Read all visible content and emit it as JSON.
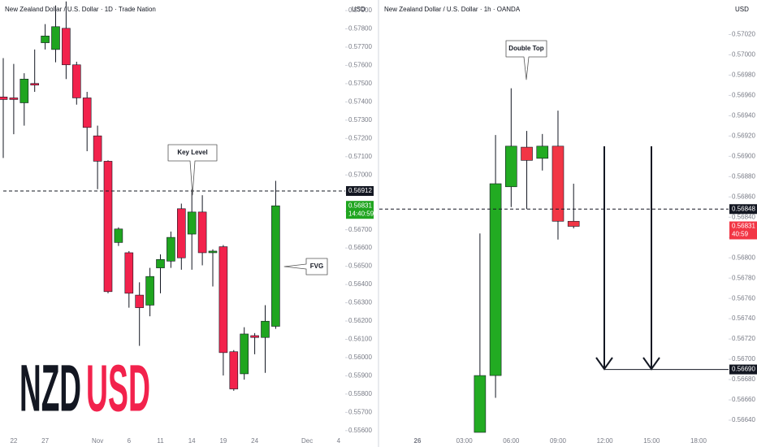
{
  "chart_data": [
    {
      "type": "candlestick",
      "title": "New Zealand Dollar / U.S. Dollar · 1D · Trade Nation",
      "currency": "USD",
      "up_color": "#1fa51f",
      "down_color": "#f2224c",
      "categories": [
        null,
        "22",
        null,
        null,
        "27",
        null,
        null,
        null,
        null,
        "Nov",
        null,
        null,
        "6",
        null,
        null,
        "11",
        null,
        null,
        "14",
        null,
        null,
        "19",
        null,
        null,
        "24",
        null,
        null,
        null,
        null,
        "Dec",
        null,
        null,
        "4"
      ],
      "open": [
        0.57427,
        0.57422,
        0.57395,
        0.57501,
        0.57724,
        0.57687,
        0.57803,
        0.57603,
        0.57422,
        0.57214,
        0.57075,
        0.5663,
        0.56574,
        0.56342,
        0.56287,
        0.56491,
        0.56528,
        0.56815,
        0.56676,
        0.56797,
        0.56574,
        0.56607,
        0.56032,
        0.55911,
        0.5612,
        0.5611,
        0.56171,
        null,
        null,
        null,
        null,
        null,
        null
      ],
      "high": [
        0.5764,
        0.57608,
        0.57557,
        0.57687,
        0.57826,
        0.57928,
        0.5795,
        0.5762,
        0.57455,
        0.5727,
        0.5708,
        0.56713,
        0.56583,
        0.56412,
        0.56491,
        0.56565,
        0.5669,
        0.56843,
        0.56922,
        0.56889,
        0.56593,
        0.56616,
        0.56041,
        0.56166,
        0.56134,
        0.56287,
        0.56968,
        null,
        null,
        null,
        null,
        null,
        null
      ],
      "low": [
        0.57093,
        0.57223,
        0.5727,
        0.57455,
        0.57687,
        0.57617,
        0.57525,
        0.57385,
        0.5713,
        0.56922,
        0.56352,
        0.56611,
        0.56273,
        0.56064,
        0.56226,
        0.56352,
        0.56491,
        0.56481,
        0.56481,
        0.56505,
        0.56389,
        0.55902,
        0.55818,
        0.55879,
        0.56018,
        0.55916,
        0.56157,
        null,
        null,
        null,
        null,
        null,
        null
      ],
      "close": [
        0.57413,
        0.57413,
        0.57525,
        0.57492,
        0.57761,
        0.57812,
        0.57603,
        0.57422,
        0.5726,
        0.57075,
        0.56361,
        0.56704,
        0.56352,
        0.56273,
        0.56444,
        0.56537,
        0.56658,
        0.56546,
        0.56797,
        0.56574,
        0.56583,
        0.56027,
        0.55828,
        0.56129,
        0.5611,
        0.56199,
        0.56831,
        null,
        null,
        null,
        null,
        null,
        null
      ],
      "ylim": [
        0.55568,
        0.57958
      ],
      "yticks": [
        {
          "value": 0.556,
          "label": "0.55600"
        },
        {
          "value": 0.557,
          "label": "0.55700"
        },
        {
          "value": 0.558,
          "label": "0.55800"
        },
        {
          "value": 0.559,
          "label": "0.55900"
        },
        {
          "value": 0.56,
          "label": "0.56000"
        },
        {
          "value": 0.561,
          "label": "0.56100"
        },
        {
          "value": 0.562,
          "label": "0.56200"
        },
        {
          "value": 0.563,
          "label": "0.56300"
        },
        {
          "value": 0.564,
          "label": "0.56400"
        },
        {
          "value": 0.565,
          "label": "0.56500"
        },
        {
          "value": 0.566,
          "label": "0.56600"
        },
        {
          "value": 0.567,
          "label": "0.56700"
        },
        {
          "value": 0.568,
          "label": "0.56800"
        },
        {
          "value": 0.569,
          "label": "0.56900"
        },
        {
          "value": 0.57,
          "label": "0.57000"
        },
        {
          "value": 0.571,
          "label": "0.57100"
        },
        {
          "value": 0.572,
          "label": "0.57200"
        },
        {
          "value": 0.573,
          "label": "0.57300"
        },
        {
          "value": 0.574,
          "label": "0.57400"
        },
        {
          "value": 0.575,
          "label": "0.57500"
        },
        {
          "value": 0.576,
          "label": "0.57600"
        },
        {
          "value": 0.577,
          "label": "0.57700"
        },
        {
          "value": 0.578,
          "label": "0.57800"
        },
        {
          "value": 0.579,
          "label": "0.57900"
        }
      ],
      "price_lines": [
        {
          "value": 0.56912,
          "label": "0.56912"
        }
      ],
      "last_price": {
        "value": 0.56831,
        "label": "0.56831",
        "countdown": "14:40:59"
      },
      "annotations": [
        "Key Level",
        "FVG"
      ],
      "symbol": [
        "NZD",
        "USD"
      ]
    },
    {
      "type": "candlestick",
      "title": "New Zealand Dollar / U.S. Dollar · 1h · OANDA",
      "currency": "USD",
      "up_color": "#22ab22",
      "down_color": "#f23645",
      "categories": [
        "26",
        null,
        null,
        "03:00",
        null,
        null,
        "06:00",
        null,
        null,
        "09:00",
        null,
        null,
        "12:00",
        null,
        null,
        "15:00",
        null,
        null,
        "18:00"
      ],
      "open": [
        null,
        null,
        null,
        null,
        0.56628,
        0.56684,
        0.5687,
        0.56909,
        0.56898,
        0.5691,
        0.56836,
        null,
        null,
        null,
        null,
        null,
        null,
        null,
        null
      ],
      "high": [
        null,
        null,
        null,
        null,
        0.56824,
        0.56921,
        0.56967,
        0.56925,
        0.56922,
        0.56945,
        0.56873,
        null,
        null,
        null,
        null,
        null,
        null,
        null,
        null
      ],
      "low": [
        null,
        null,
        null,
        null,
        0.56628,
        0.56662,
        0.5685,
        0.56848,
        0.56886,
        0.56818,
        0.56829,
        null,
        null,
        null,
        null,
        null,
        null,
        null,
        null
      ],
      "close": [
        null,
        null,
        null,
        null,
        0.56684,
        0.56873,
        0.5691,
        0.56896,
        0.5691,
        0.56836,
        0.56831,
        null,
        null,
        null,
        null,
        null,
        null,
        null,
        null
      ],
      "ylim": [
        0.56624,
        0.57054
      ],
      "yticks": [
        {
          "value": 0.5664,
          "label": "0.56640"
        },
        {
          "value": 0.5666,
          "label": "0.56660"
        },
        {
          "value": 0.5668,
          "label": "0.56680"
        },
        {
          "value": 0.567,
          "label": "0.56700"
        },
        {
          "value": 0.5672,
          "label": "0.56720"
        },
        {
          "value": 0.5674,
          "label": "0.56740"
        },
        {
          "value": 0.5676,
          "label": "0.56760"
        },
        {
          "value": 0.5678,
          "label": "0.56780"
        },
        {
          "value": 0.568,
          "label": "0.56800"
        },
        {
          "value": 0.5682,
          "label": "0.56820"
        },
        {
          "value": 0.5684,
          "label": "0.56840"
        },
        {
          "value": 0.5686,
          "label": "0.56860"
        },
        {
          "value": 0.5688,
          "label": "0.56880"
        },
        {
          "value": 0.569,
          "label": "0.56900"
        },
        {
          "value": 0.5692,
          "label": "0.56920"
        },
        {
          "value": 0.5694,
          "label": "0.56940"
        },
        {
          "value": 0.5696,
          "label": "0.56960"
        },
        {
          "value": 0.5698,
          "label": "0.56980"
        },
        {
          "value": 0.57,
          "label": "0.57000"
        },
        {
          "value": 0.5702,
          "label": "0.57020"
        }
      ],
      "price_lines": [
        {
          "value": 0.56848,
          "label": "0.56848"
        },
        {
          "value": 0.5669,
          "label": "0.56690"
        }
      ],
      "last_price": {
        "value": 0.56831,
        "label": "0.56831",
        "countdown": "40:59"
      },
      "annotations": [
        "Double Top"
      ]
    }
  ]
}
